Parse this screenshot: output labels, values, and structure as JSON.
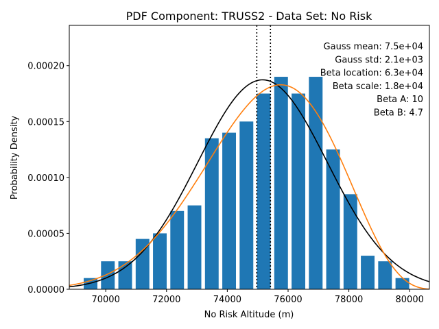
{
  "chart_data": {
    "type": "bar",
    "title": "PDF Component: TRUSS2 - Data Set: No Risk",
    "xlabel": "No Risk Altitude (m)",
    "ylabel": "Probability Density",
    "xlim": [
      68800,
      80650
    ],
    "ylim": [
      0,
      0.000236
    ],
    "xticks": [
      {
        "value": 70000,
        "label": "70000"
      },
      {
        "value": 72000,
        "label": "72000"
      },
      {
        "value": 74000,
        "label": "74000"
      },
      {
        "value": 76000,
        "label": "76000"
      },
      {
        "value": 78000,
        "label": "78000"
      },
      {
        "value": 80000,
        "label": "80000"
      }
    ],
    "yticks": [
      {
        "value": 0,
        "label": "0.00000"
      },
      {
        "value": 5e-05,
        "label": "0.00005"
      },
      {
        "value": 0.0001,
        "label": "0.00010"
      },
      {
        "value": 0.00015,
        "label": "0.00015"
      },
      {
        "value": 0.0002,
        "label": "0.00020"
      }
    ],
    "bar_width": 450,
    "bars": [
      {
        "x": 69500,
        "value": 1e-05
      },
      {
        "x": 70070,
        "value": 2.5e-05
      },
      {
        "x": 70640,
        "value": 2.5e-05
      },
      {
        "x": 71210,
        "value": 4.5e-05
      },
      {
        "x": 71780,
        "value": 5e-05
      },
      {
        "x": 72350,
        "value": 7e-05
      },
      {
        "x": 72920,
        "value": 7.5e-05
      },
      {
        "x": 73490,
        "value": 0.000135
      },
      {
        "x": 74060,
        "value": 0.00014
      },
      {
        "x": 74630,
        "value": 0.00015
      },
      {
        "x": 75200,
        "value": 0.000175
      },
      {
        "x": 75770,
        "value": 0.00019
      },
      {
        "x": 76340,
        "value": 0.000175
      },
      {
        "x": 76910,
        "value": 0.00019
      },
      {
        "x": 77480,
        "value": 0.000125
      },
      {
        "x": 78050,
        "value": 8.5e-05
      },
      {
        "x": 78620,
        "value": 3e-05
      },
      {
        "x": 79190,
        "value": 2.5e-05
      },
      {
        "x": 79760,
        "value": 1e-05
      }
    ],
    "gauss": {
      "mean": 75160,
      "std": 2130
    },
    "beta": {
      "loc": 63000,
      "scale": 18000,
      "a": 10,
      "b": 4.7
    },
    "vlines": [
      74970,
      75420
    ],
    "annotations": [
      "Gauss mean: 7.5e+04",
      "Gauss std: 2.1e+03",
      "Beta location: 6.3e+04",
      "Beta scale: 1.8e+04",
      "Beta A: 10",
      "Beta B: 4.7"
    ],
    "colors": {
      "bar": "#1f77b4",
      "gauss": "#000000",
      "beta": "#ff7f0e",
      "vline": "#000000"
    },
    "grid": false
  }
}
